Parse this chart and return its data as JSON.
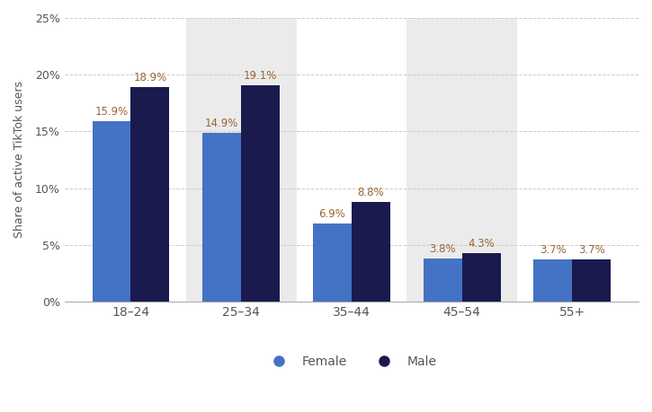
{
  "categories": [
    "18–24",
    "25–34",
    "35–44",
    "45–54",
    "55+"
  ],
  "female_values": [
    15.9,
    14.9,
    6.9,
    3.8,
    3.7
  ],
  "male_values": [
    18.9,
    19.1,
    8.8,
    4.3,
    3.7
  ],
  "female_color": "#4472c4",
  "male_color": "#1a1a4e",
  "bar_width": 0.35,
  "ylim": [
    0,
    25
  ],
  "yticks": [
    0,
    5,
    10,
    15,
    20,
    25
  ],
  "ylabel": "Share of active TikTok users",
  "background_color": "#ffffff",
  "legend_labels": [
    "Female",
    "Male"
  ],
  "label_color": "#996633",
  "label_fontsize": 8.5,
  "shaded_groups": [
    1,
    3
  ],
  "tick_label_color": "#555555",
  "shaded_color": "#ebebeb"
}
